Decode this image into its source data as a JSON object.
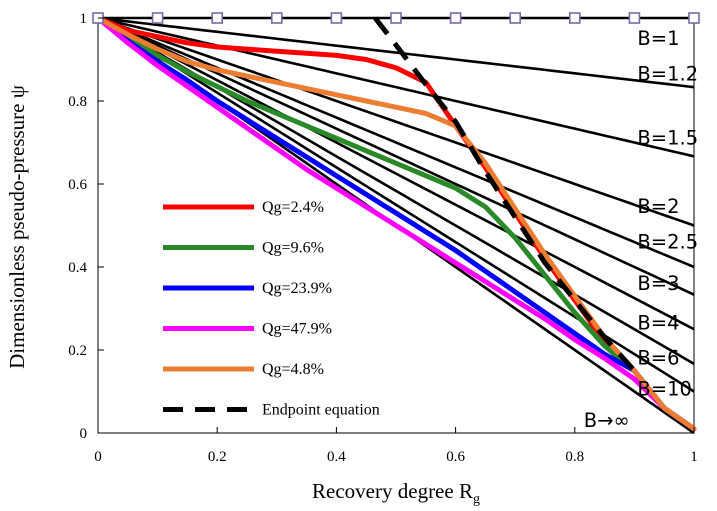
{
  "chart_data": {
    "type": "line",
    "title": "",
    "xlabel": "Recovery degree R",
    "xlabel_sub": "g",
    "ylabel": "Dimensionless pseudo-pressure ψ",
    "xlim": [
      0,
      1
    ],
    "ylim": [
      0,
      1
    ],
    "xticks": [
      "0",
      "0.2",
      "0.4",
      "0.6",
      "0.8",
      "1"
    ],
    "yticks": [
      "0",
      "0.2",
      "0.4",
      "0.6",
      "0.8",
      "1"
    ],
    "grid": false,
    "legend_position": "left-lower",
    "b_curves": [
      {
        "label": "B=1",
        "B": 1,
        "label_pos": [
          0.905,
          0.935
        ]
      },
      {
        "label": "B=1.2",
        "B": 1.2,
        "label_pos": [
          0.905,
          0.85
        ]
      },
      {
        "label": "B=1.5",
        "B": 1.5,
        "label_pos": [
          0.905,
          0.695
        ]
      },
      {
        "label": "B=2",
        "B": 2,
        "label_pos": [
          0.905,
          0.53
        ]
      },
      {
        "label": "B=2.5",
        "B": 2.5,
        "label_pos": [
          0.905,
          0.445
        ]
      },
      {
        "label": "B=3",
        "B": 3,
        "label_pos": [
          0.905,
          0.345
        ]
      },
      {
        "label": "B=4",
        "B": 4,
        "label_pos": [
          0.905,
          0.25
        ]
      },
      {
        "label": "B=6",
        "B": 6,
        "label_pos": [
          0.905,
          0.165
        ]
      },
      {
        "label": "B=10",
        "B": 10,
        "label_pos": [
          0.905,
          0.09
        ]
      },
      {
        "label": "B→∞",
        "B": null,
        "label_pos": [
          0.815,
          0.015
        ]
      }
    ],
    "markers": {
      "name": "",
      "color": "#7a68a8",
      "x": [
        0,
        0.1,
        0.2,
        0.3,
        0.4,
        0.5,
        0.6,
        0.7,
        0.8,
        0.9,
        1.0
      ],
      "y": [
        1,
        1,
        1,
        1,
        1,
        1,
        1,
        1,
        1,
        1,
        1
      ]
    },
    "series": [
      {
        "name": "Qg=2.4%",
        "color": "#ff0000",
        "x": [
          0,
          0.05,
          0.1,
          0.15,
          0.2,
          0.25,
          0.3,
          0.35,
          0.4,
          0.45,
          0.5,
          0.55,
          0.6,
          0.65,
          0.7,
          0.75,
          0.8,
          0.85,
          0.9,
          0.95,
          1.0
        ],
        "y": [
          1,
          0.97,
          0.955,
          0.94,
          0.93,
          0.925,
          0.92,
          0.915,
          0.91,
          0.9,
          0.88,
          0.845,
          0.74,
          0.64,
          0.53,
          0.42,
          0.32,
          0.22,
          0.15,
          0.06,
          0.01
        ]
      },
      {
        "name": "Qg=9.6%",
        "color": "#2a8a2a",
        "x": [
          0,
          0.05,
          0.1,
          0.15,
          0.2,
          0.25,
          0.3,
          0.35,
          0.4,
          0.45,
          0.5,
          0.55,
          0.6,
          0.65,
          0.7,
          0.75,
          0.8,
          0.85,
          0.9,
          0.95,
          1.0
        ],
        "y": [
          1,
          0.955,
          0.91,
          0.87,
          0.835,
          0.8,
          0.77,
          0.74,
          0.71,
          0.68,
          0.65,
          0.62,
          0.59,
          0.545,
          0.47,
          0.38,
          0.29,
          0.21,
          0.15,
          0.06,
          0.01
        ]
      },
      {
        "name": "Qg=23.9%",
        "color": "#0000ff",
        "x": [
          0,
          0.05,
          0.1,
          0.15,
          0.2,
          0.25,
          0.3,
          0.35,
          0.4,
          0.45,
          0.5,
          0.55,
          0.6,
          0.65,
          0.7,
          0.75,
          0.8,
          0.85,
          0.9,
          0.95,
          1.0
        ],
        "y": [
          1,
          0.945,
          0.895,
          0.85,
          0.8,
          0.755,
          0.71,
          0.665,
          0.62,
          0.575,
          0.53,
          0.485,
          0.44,
          0.39,
          0.34,
          0.29,
          0.24,
          0.19,
          0.15,
          0.06,
          0.01
        ]
      },
      {
        "name": "Qg=47.9%",
        "color": "#ff00ff",
        "x": [
          0,
          0.05,
          0.1,
          0.15,
          0.2,
          0.25,
          0.3,
          0.35,
          0.4,
          0.45,
          0.5,
          0.55,
          0.6,
          0.65,
          0.7,
          0.75,
          0.8,
          0.85,
          0.9,
          0.95,
          1.0
        ],
        "y": [
          1,
          0.94,
          0.885,
          0.835,
          0.785,
          0.735,
          0.685,
          0.635,
          0.59,
          0.545,
          0.5,
          0.455,
          0.41,
          0.365,
          0.32,
          0.275,
          0.225,
          0.18,
          0.13,
          0.06,
          0.01
        ]
      },
      {
        "name": "Qg=4.8%",
        "color": "#ed7d31",
        "x": [
          0,
          0.05,
          0.1,
          0.15,
          0.2,
          0.25,
          0.3,
          0.35,
          0.4,
          0.45,
          0.5,
          0.55,
          0.6,
          0.65,
          0.7,
          0.75,
          0.8,
          0.85,
          0.9,
          0.95,
          1.0
        ],
        "y": [
          1,
          0.96,
          0.925,
          0.895,
          0.875,
          0.86,
          0.845,
          0.83,
          0.815,
          0.8,
          0.785,
          0.77,
          0.74,
          0.65,
          0.54,
          0.43,
          0.33,
          0.23,
          0.15,
          0.06,
          0.01
        ]
      }
    ],
    "endpoint_curve": {
      "name": "Endpoint equation",
      "color": "#000000",
      "x": [
        0.465,
        0.5,
        0.55,
        0.6,
        0.65,
        0.7,
        0.75,
        0.8,
        0.85,
        0.9
      ],
      "y": [
        1.0,
        0.935,
        0.84,
        0.75,
        0.63,
        0.52,
        0.41,
        0.32,
        0.23,
        0.15
      ]
    },
    "legend": [
      {
        "label": "Qg=2.4%",
        "color": "#ff0000",
        "style": "solid"
      },
      {
        "label": "Qg=9.6%",
        "color": "#2a8a2a",
        "style": "solid"
      },
      {
        "label": "Qg=23.9%",
        "color": "#0000ff",
        "style": "solid"
      },
      {
        "label": "Qg=47.9%",
        "color": "#ff00ff",
        "style": "solid"
      },
      {
        "label": "Qg=4.8%",
        "color": "#ed7d31",
        "style": "solid"
      },
      {
        "label": "Endpoint equation",
        "color": "#000000",
        "style": "dashed"
      }
    ]
  }
}
